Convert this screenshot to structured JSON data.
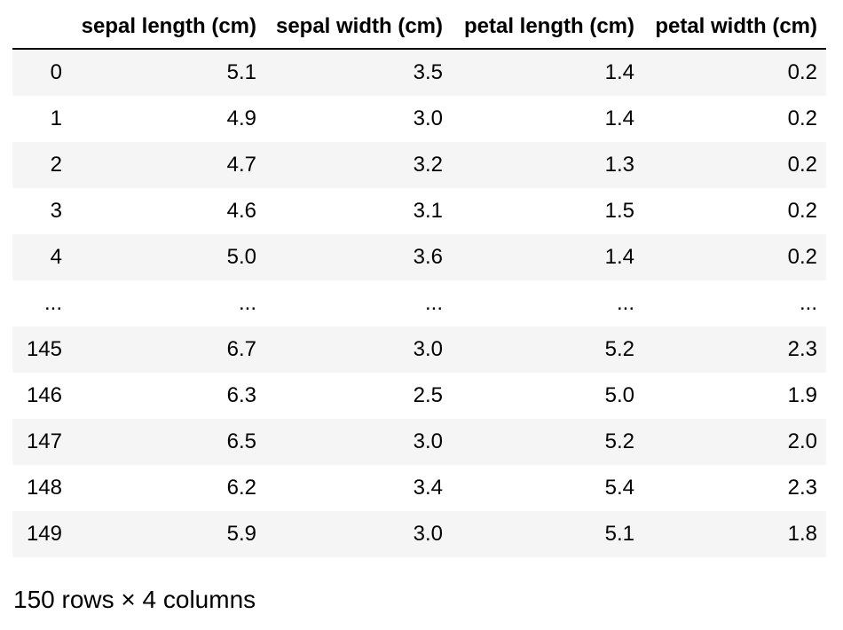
{
  "colors": {
    "background": "#ffffff",
    "text": "#000000",
    "row_stripe": "#f5f5f5",
    "header_rule": "#000000"
  },
  "chart_data": {
    "type": "table",
    "index_header": "",
    "columns": [
      "sepal length (cm)",
      "sepal width (cm)",
      "petal length (cm)",
      "petal width (cm)"
    ],
    "index": [
      "0",
      "1",
      "2",
      "3",
      "4",
      "...",
      "145",
      "146",
      "147",
      "148",
      "149"
    ],
    "rows": [
      [
        "5.1",
        "3.5",
        "1.4",
        "0.2"
      ],
      [
        "4.9",
        "3.0",
        "1.4",
        "0.2"
      ],
      [
        "4.7",
        "3.2",
        "1.3",
        "0.2"
      ],
      [
        "4.6",
        "3.1",
        "1.5",
        "0.2"
      ],
      [
        "5.0",
        "3.6",
        "1.4",
        "0.2"
      ],
      [
        "...",
        "...",
        "...",
        "..."
      ],
      [
        "6.7",
        "3.0",
        "5.2",
        "2.3"
      ],
      [
        "6.3",
        "2.5",
        "5.0",
        "1.9"
      ],
      [
        "6.5",
        "3.0",
        "5.2",
        "2.0"
      ],
      [
        "6.2",
        "3.4",
        "5.4",
        "2.3"
      ],
      [
        "5.9",
        "3.0",
        "5.1",
        "1.8"
      ]
    ],
    "footer": "150 rows × 4 columns",
    "layout": {
      "grid": false,
      "row_striping": "odd rows shaded",
      "alignment": "right"
    }
  }
}
